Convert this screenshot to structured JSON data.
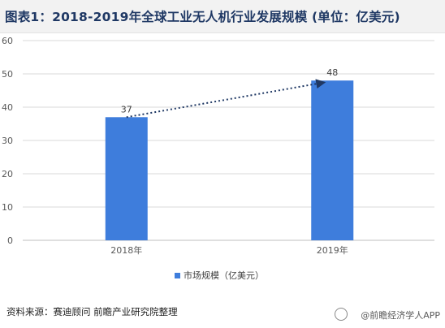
{
  "title": "图表1：2018-2019年全球工业无人机行业发展规模 (单位：亿美元)",
  "chart_data": {
    "type": "bar",
    "categories": [
      "2018年",
      "2019年"
    ],
    "series": [
      {
        "name": "市场规模（亿美元）",
        "values": [
          37,
          48
        ],
        "color": "#3e7ddc"
      }
    ],
    "ylim": [
      0,
      60
    ],
    "yticks": [
      0,
      10,
      20,
      30,
      40,
      50,
      60
    ],
    "grid": true,
    "legend_position": "bottom",
    "trend_line": {
      "style": "dotted-arrow",
      "color": "#1f3864"
    }
  },
  "source": "资料来源：赛迪顾问 前瞻产业研究院整理",
  "watermark": "@前瞻经济学人APP"
}
